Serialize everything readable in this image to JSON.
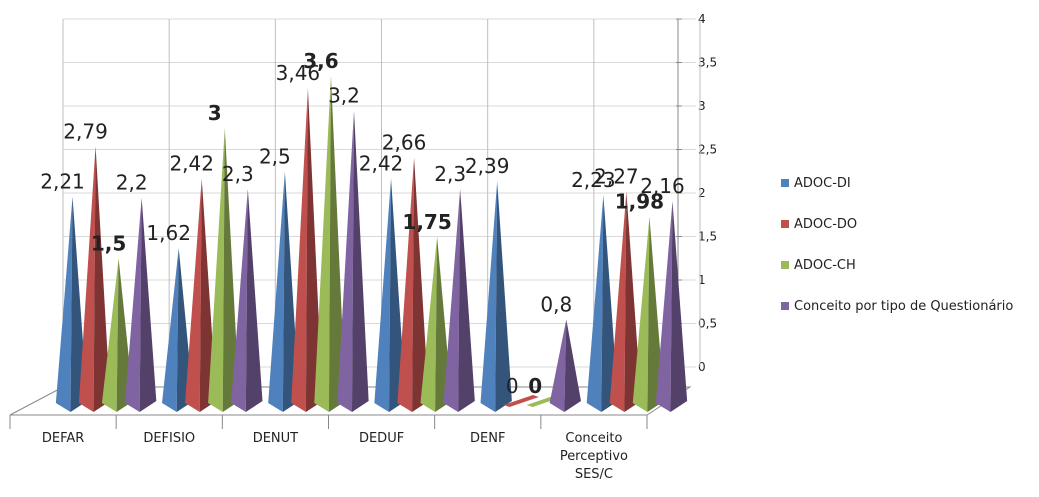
{
  "chart_data": {
    "type": "bar",
    "style": "3d-pyramid",
    "categories": [
      "DEFAR",
      "DEFISIO",
      "DENUT",
      "DEDUF",
      "DENF",
      "Conceito Perceptivo SES/C"
    ],
    "category_lines": [
      [
        "DEFAR"
      ],
      [
        "DEFISIO"
      ],
      [
        "DENUT"
      ],
      [
        "DEDUF"
      ],
      [
        "DENF"
      ],
      [
        "Conceito",
        "Perceptivo",
        "SES/C"
      ]
    ],
    "series": [
      {
        "name": "ADOC-DI",
        "color": "#4f81bd",
        "values": [
          2.21,
          1.62,
          2.5,
          2.42,
          2.39,
          2.23
        ],
        "labels": [
          "2,21",
          "1,62",
          "2,5",
          "2,42",
          "2,39",
          "2,23"
        ],
        "bold": [
          false,
          false,
          false,
          false,
          false,
          false
        ]
      },
      {
        "name": "ADOC-DO",
        "color": "#c0504d",
        "values": [
          2.79,
          2.42,
          3.46,
          2.66,
          0,
          2.27
        ],
        "labels": [
          "2,79",
          "2,42",
          "3,46",
          "2,66",
          "0",
          "2,27"
        ],
        "bold": [
          false,
          false,
          false,
          false,
          false,
          false
        ]
      },
      {
        "name": "ADOC-CH",
        "color": "#9bbb59",
        "values": [
          1.5,
          3,
          3.6,
          1.75,
          0,
          1.98
        ],
        "labels": [
          "1,5",
          "3",
          "3,6",
          "1,75",
          "0",
          "1,98"
        ],
        "bold": [
          true,
          true,
          true,
          true,
          true,
          true
        ]
      },
      {
        "name": "Conceito por tipo de Questionário",
        "color": "#8064a2",
        "values": [
          2.2,
          2.3,
          3.2,
          2.3,
          0.8,
          2.16
        ],
        "labels": [
          "2,2",
          "2,3",
          "3,2",
          "2,3",
          "0,8",
          "2,16"
        ],
        "bold": [
          false,
          false,
          false,
          false,
          false,
          false
        ]
      }
    ],
    "ylim": [
      0,
      4
    ],
    "yticks": [
      "0",
      "0,5",
      "1",
      "1,5",
      "2",
      "2,5",
      "3",
      "3,5",
      "4"
    ],
    "grid": true,
    "legend": "right"
  }
}
